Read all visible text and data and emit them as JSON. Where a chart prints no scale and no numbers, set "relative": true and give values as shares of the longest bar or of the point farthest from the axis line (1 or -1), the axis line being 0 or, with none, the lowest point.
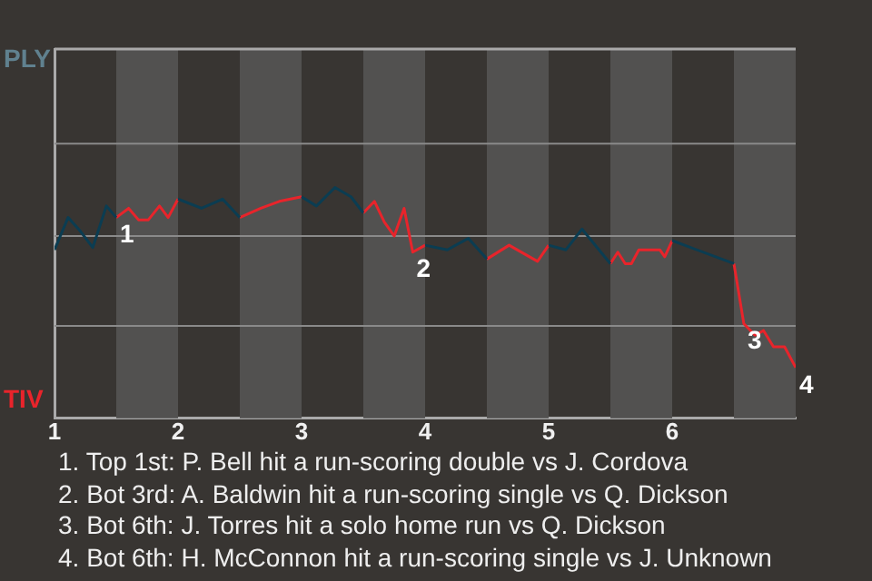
{
  "chart_data": {
    "type": "line",
    "relative": true,
    "xlim": [
      1,
      7
    ],
    "xticks": [
      1,
      2,
      3,
      4,
      5,
      6
    ],
    "marker": "none",
    "line_style": "solid",
    "ref_lines": [
      {
        "axis": "y",
        "value": 0.4,
        "color": "#8a8a8a"
      },
      {
        "axis": "y",
        "value": 0.79,
        "color": "#8a8a8a"
      },
      {
        "axis": "y",
        "value": 1.19,
        "color": "#8a8a8a"
      }
    ],
    "series": [
      {
        "color": "#0b3d52",
        "x": [
          1.0,
          1.11,
          1.21,
          1.31,
          1.42,
          1.5,
          1.75,
          2.0,
          2.19,
          2.36,
          2.5,
          2.75,
          3.0,
          3.12,
          3.27,
          3.4,
          3.5,
          3.75,
          4.0,
          4.18,
          4.35,
          4.5,
          4.75,
          5.0,
          5.14,
          5.27,
          5.5,
          5.75,
          6.0,
          6.5
        ],
        "values": [
          0.73,
          0.87,
          0.81,
          0.74,
          0.92,
          0.87,
          null,
          0.95,
          0.91,
          0.95,
          0.87,
          null,
          0.96,
          0.92,
          1,
          0.96,
          0.89,
          null,
          0.75,
          0.73,
          0.78,
          0.69,
          null,
          0.75,
          0.73,
          0.82,
          0.67,
          null,
          0.77,
          0.67
        ]
      },
      {
        "color": "#e8242b",
        "x": [
          1.5,
          1.6,
          1.68,
          1.76,
          1.85,
          1.92,
          2.0,
          2.25,
          2.5,
          2.67,
          2.82,
          3.0,
          3.25,
          3.5,
          3.59,
          3.67,
          3.75,
          3.83,
          3.9,
          4.0,
          4.25,
          4.5,
          4.68,
          4.91,
          5.0,
          5.25,
          5.5,
          5.56,
          5.62,
          5.67,
          5.73,
          5.9,
          5.94,
          6.0,
          6.25,
          6.5,
          6.58,
          6.67,
          6.74,
          6.82,
          6.91,
          7.0
        ],
        "values": [
          0.87,
          0.91,
          0.86,
          0.86,
          0.92,
          0.87,
          0.95,
          null,
          0.87,
          0.91,
          0.94,
          0.96,
          null,
          0.89,
          0.94,
          0.85,
          0.79,
          0.91,
          0.72,
          0.75,
          null,
          0.69,
          0.75,
          0.68,
          0.75,
          null,
          0.67,
          0.72,
          0.67,
          0.67,
          0.73,
          0.73,
          0.7,
          0.77,
          null,
          0.67,
          0.41,
          0.36,
          0.38,
          0.31,
          0.31,
          0.22
        ]
      }
    ],
    "bands": [
      {
        "axis": "x",
        "from": 1.5,
        "to": 2,
        "color": "#525150"
      },
      {
        "axis": "x",
        "from": 2.5,
        "to": 3,
        "color": "#525150"
      },
      {
        "axis": "x",
        "from": 3.5,
        "to": 4,
        "color": "#525150"
      },
      {
        "axis": "x",
        "from": 4.5,
        "to": 5,
        "color": "#525150"
      },
      {
        "axis": "x",
        "from": 5.5,
        "to": 6,
        "color": "#525150"
      },
      {
        "axis": "x",
        "from": 6.5,
        "to": 7,
        "color": "#525150"
      }
    ],
    "annotations": [
      "PLY",
      "TIV",
      {
        "text": "1",
        "x": 1.5,
        "y": 0.87
      },
      {
        "text": "2",
        "x": 3.9,
        "y": 0.72
      },
      {
        "text": "3",
        "x": 6.58,
        "y": 0.41
      },
      {
        "text": "4",
        "x": 7.0,
        "y": 0.22
      },
      "1. Top 1st: P. Bell hit a run-scoring double vs J. Cordova",
      "2. Bot 3rd: A. Baldwin hit a run-scoring single vs Q. Dickson",
      "3. Bot 6th: J. Torres hit a solo home run vs Q. Dickson",
      "4. Bot 6th: H. McConnon hit a run-scoring single vs J. Unknown"
    ]
  }
}
